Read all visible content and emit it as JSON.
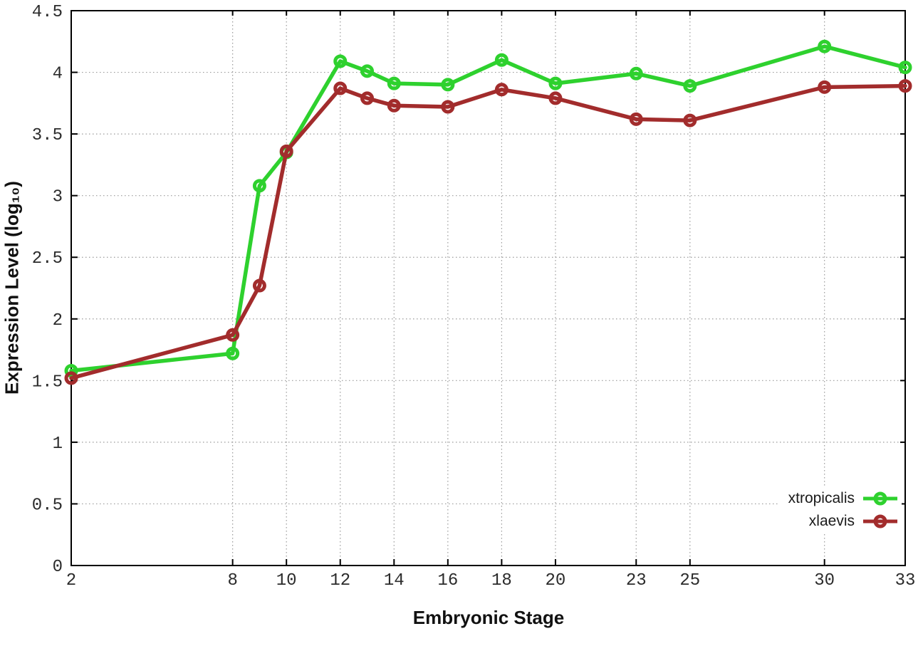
{
  "figure": {
    "background": "#ffffff",
    "grid_color": "#9a9a9a",
    "border_color": "#000000",
    "x_axis": {
      "label": "Embryonic Stage",
      "ticks": [
        "2",
        "8",
        "10",
        "12",
        "14",
        "16",
        "18",
        "20",
        "23",
        "25",
        "30",
        "33"
      ],
      "tick_values": [
        2,
        8,
        10,
        12,
        14,
        16,
        18,
        20,
        23,
        25,
        30,
        33
      ]
    },
    "y_axis": {
      "label": "Expression Level (log₁₀)",
      "ticks": [
        "0",
        "0.5",
        "1",
        "1.5",
        "2",
        "2.5",
        "3",
        "3.5",
        "4",
        "4.5"
      ],
      "tick_values": [
        0,
        0.5,
        1,
        1.5,
        2,
        2.5,
        3,
        3.5,
        4,
        4.5
      ]
    },
    "legend": {
      "position": "bottom-right",
      "entries": [
        {
          "label": "xtropicalis",
          "color": "#2ed12e"
        },
        {
          "label": "xlaevis",
          "color": "#a22c2c"
        }
      ]
    }
  },
  "chart_data": {
    "type": "line",
    "title": "",
    "xlabel": "Embryonic Stage",
    "ylabel": "Expression Level (log₁₀)",
    "x": [
      2,
      8,
      9,
      10,
      12,
      13,
      14,
      16,
      18,
      20,
      23,
      25,
      30,
      33
    ],
    "series": [
      {
        "name": "xtropicalis",
        "color": "#2ed12e",
        "values": [
          1.58,
          1.72,
          3.08,
          3.35,
          4.09,
          4.01,
          3.91,
          3.9,
          4.1,
          3.91,
          3.99,
          3.89,
          4.21,
          4.04
        ]
      },
      {
        "name": "xlaevis",
        "color": "#a22c2c",
        "values": [
          1.52,
          1.87,
          2.27,
          3.36,
          3.87,
          3.79,
          3.73,
          3.72,
          3.86,
          3.79,
          3.62,
          3.61,
          3.88,
          3.89
        ]
      }
    ],
    "xlim": [
      2,
      33
    ],
    "ylim": [
      0,
      4.5
    ],
    "grid": true,
    "grid_style": "dotted",
    "legend_position": "bottom-right",
    "marker": "open-circle"
  }
}
